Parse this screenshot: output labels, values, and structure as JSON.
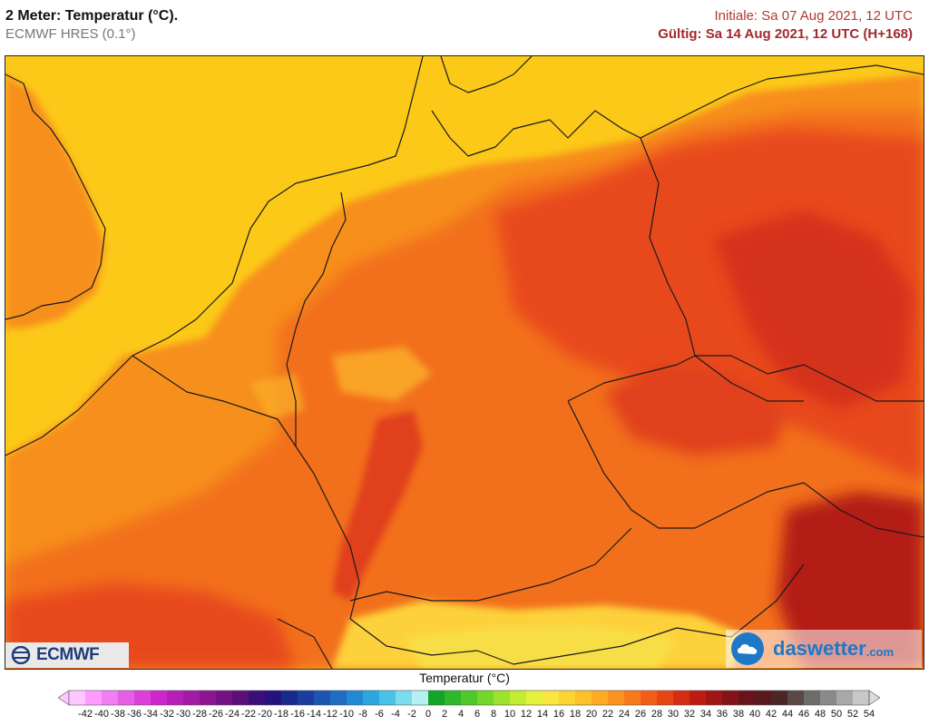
{
  "header": {
    "title": "2 Meter: Temperatur (°C).",
    "model": "ECMWF HRES (0.1°)",
    "initial": "Initiale: Sa 07 Aug 2021, 12 UTC",
    "valid": "Gültig: Sa 14 Aug 2021, 12 UTC (H+168)"
  },
  "logos": {
    "left_text": "ECMWF",
    "right_text": "daswetter",
    "right_domain": ".com"
  },
  "legend": {
    "title": "Temperatur (°C)",
    "ticks": [
      "-42",
      "-40",
      "-38",
      "-36",
      "-34",
      "-32",
      "-30",
      "-28",
      "-26",
      "-24",
      "-22",
      "-20",
      "-18",
      "-16",
      "-14",
      "-12",
      "-10",
      "-8",
      "-6",
      "-4",
      "-2",
      "0",
      "2",
      "4",
      "6",
      "8",
      "10",
      "12",
      "14",
      "16",
      "18",
      "20",
      "22",
      "24",
      "26",
      "28",
      "30",
      "32",
      "34",
      "36",
      "38",
      "40",
      "42",
      "44",
      "46",
      "48",
      "50",
      "52",
      "54"
    ],
    "colors": [
      "#ffc7ff",
      "#ff9cff",
      "#f17ef2",
      "#e75ee6",
      "#dc3fdc",
      "#cc26cc",
      "#b71fb8",
      "#a31aa5",
      "#8d1592",
      "#741184",
      "#5c0f78",
      "#3b0e78",
      "#24127e",
      "#192a8d",
      "#193e9e",
      "#1b55b0",
      "#1e6cc3",
      "#228ad2",
      "#2ba6de",
      "#49c2e7",
      "#7bdcee",
      "#b6f0f2",
      "#12a52a",
      "#2fb92a",
      "#51c82a",
      "#75d62c",
      "#9ce22f",
      "#c3ec34",
      "#e5f13a",
      "#fbe63f",
      "#fdd533",
      "#fdc12a",
      "#fdab23",
      "#fc921f",
      "#f8791b",
      "#f25e17",
      "#e84516",
      "#d52d14",
      "#bd1c15",
      "#a11517",
      "#84131a",
      "#69141c",
      "#561a1f",
      "#4b2626",
      "#5a4747",
      "#6e6b6b",
      "#8a8a8a",
      "#a8a8a8",
      "#c8c8c8"
    ]
  },
  "map": {
    "sea_color": "#fcc919",
    "border_color": "#1a1a1a"
  }
}
